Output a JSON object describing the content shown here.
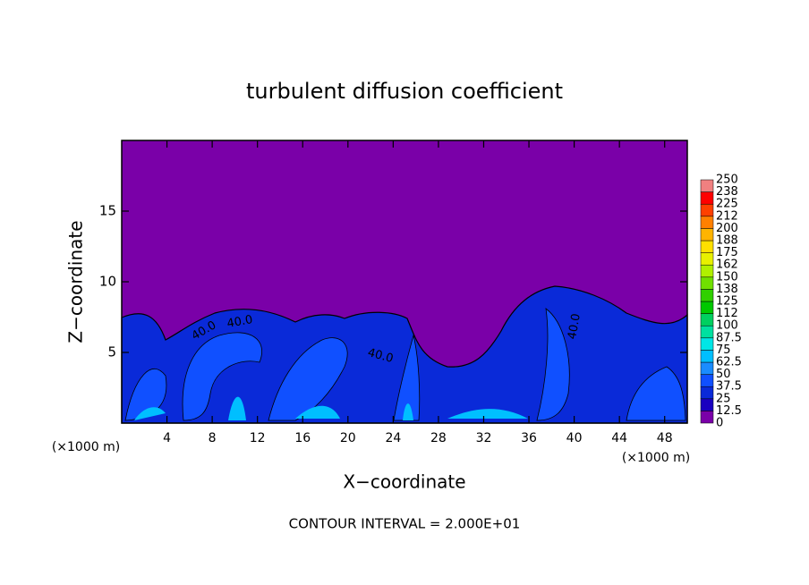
{
  "chart_data": {
    "type": "contour",
    "title": "turbulent diffusion coefficient",
    "x_label": "X−coordinate",
    "y_label": "Z−coordinate",
    "x_unit": "(×1000 m)",
    "x_unit_right": "(×1000 m)",
    "footer": "CONTOUR INTERVAL = 2.000E+01",
    "xlim": [
      0,
      50
    ],
    "xticks": [
      4,
      8,
      12,
      16,
      20,
      24,
      28,
      32,
      36,
      40,
      44,
      48
    ],
    "ylim": [
      0,
      20
    ],
    "yticks": [
      5,
      10,
      15
    ],
    "annotations": [
      "40.0",
      "40.0",
      "40.0",
      "40.0"
    ],
    "colorbar": {
      "levels": [
        0,
        12.5,
        25,
        37.5,
        50,
        62.5,
        75,
        87.5,
        100,
        {
          "value": 112.5,
          "label": "112"
        },
        125,
        {
          "value": 137.5,
          "label": "138"
        },
        150,
        {
          "value": 162.5,
          "label": "162"
        },
        175,
        {
          "value": 187.5,
          "label": "188"
        },
        200,
        {
          "value": 212.5,
          "label": "212"
        },
        225,
        {
          "value": 237.5,
          "label": "238"
        },
        250
      ],
      "colors": [
        "#7a00a8",
        "#1a00c0",
        "#0a2ad8",
        "#1050ff",
        "#1a8cff",
        "#00bfff",
        "#00e6e6",
        "#00e0a0",
        "#00d060",
        "#00c800",
        "#30d000",
        "#70e000",
        "#b0f000",
        "#e8f000",
        "#ffe000",
        "#ffb400",
        "#ff8000",
        "#ff4000",
        "#ff0000",
        "#f08080"
      ]
    }
  }
}
